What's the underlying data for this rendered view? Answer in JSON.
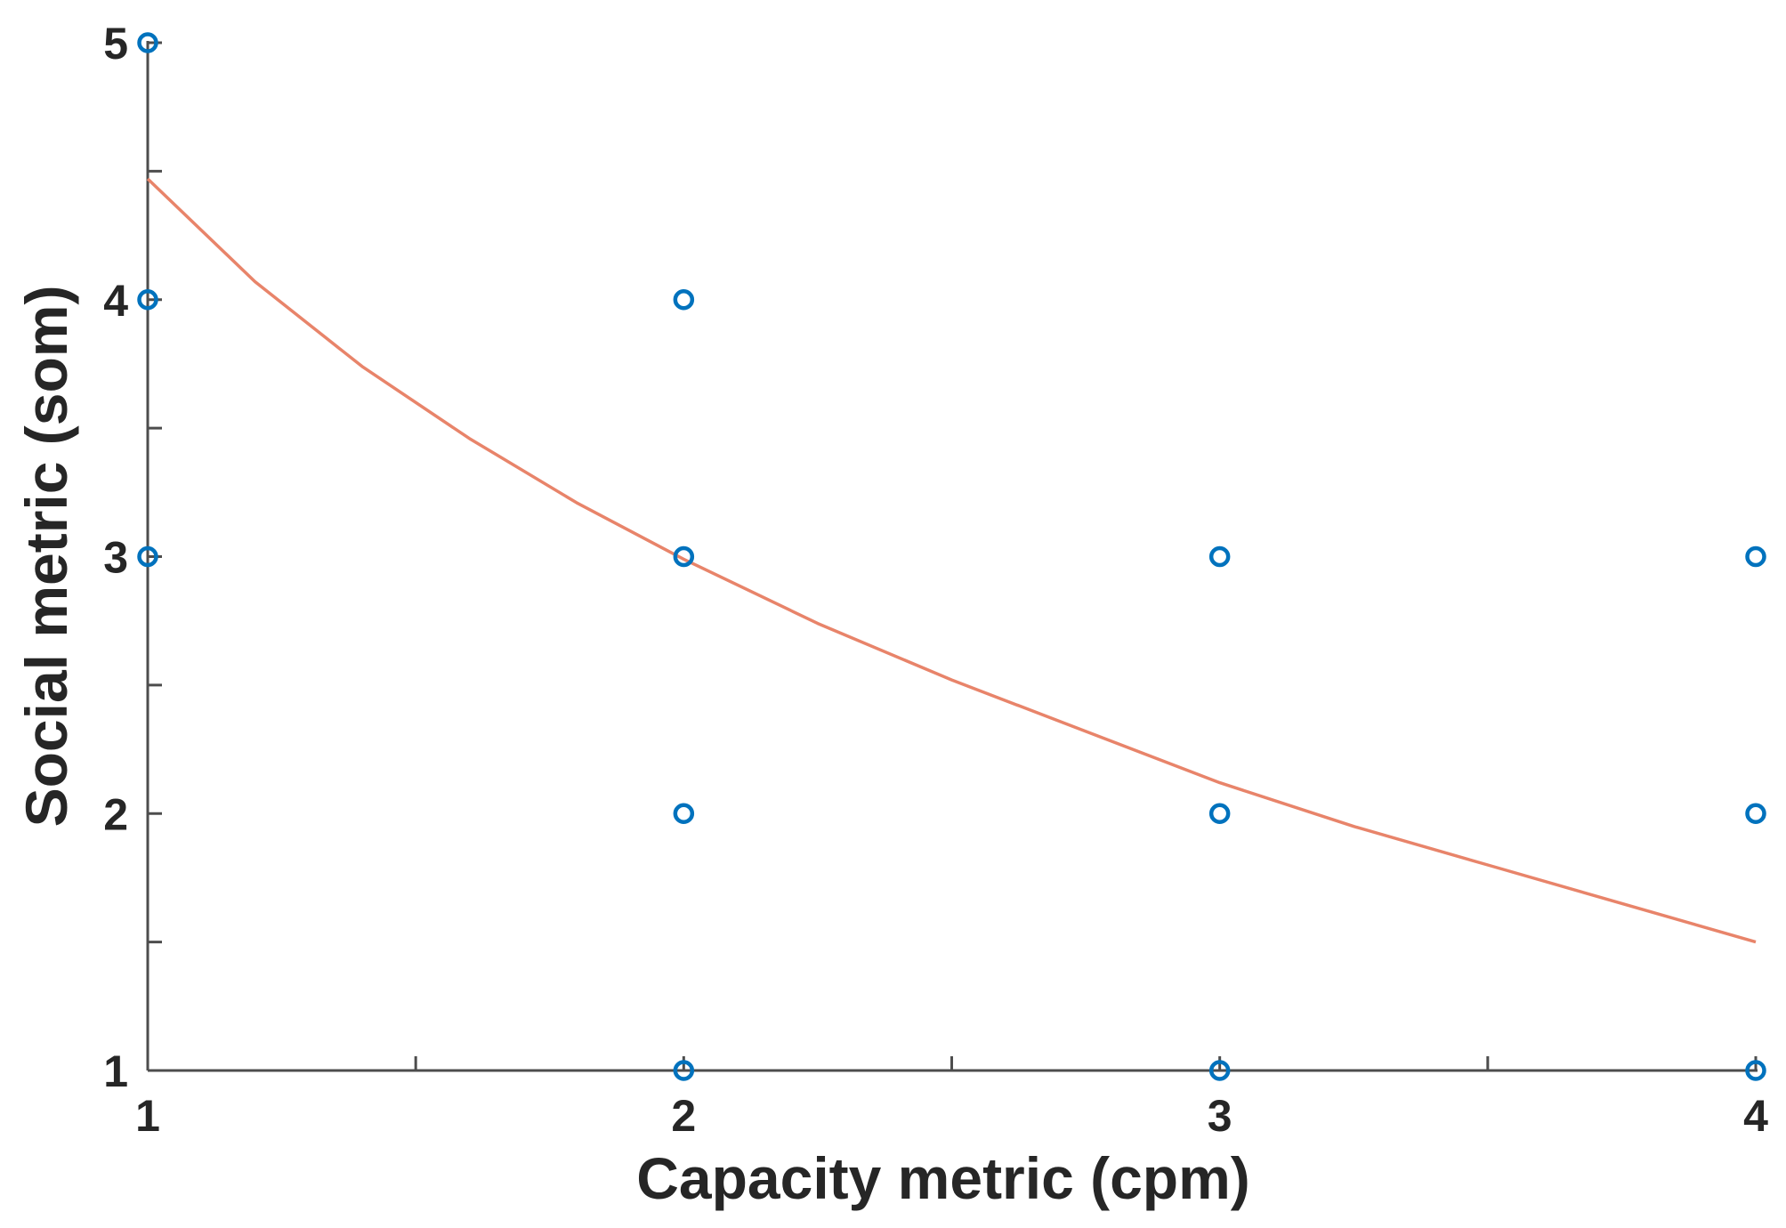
{
  "chart_data": {
    "type": "scatter",
    "title": "",
    "xlabel": "Capacity metric (cpm)",
    "ylabel": "Social metric (som)",
    "xlim": [
      1,
      4
    ],
    "ylim": [
      1,
      5
    ],
    "xticks": [
      1,
      2,
      3,
      4
    ],
    "yticks": [
      1,
      2,
      3,
      4,
      5
    ],
    "x_minor_ticks": [
      1.5,
      2.5,
      3.5
    ],
    "y_minor_ticks": [
      1.5,
      2.5,
      3.5,
      4.5
    ],
    "grid": false,
    "series": [
      {
        "name": "observations",
        "type": "scatter",
        "marker": "circle",
        "color": "#0072BD",
        "points": [
          {
            "x": 1,
            "y": 5
          },
          {
            "x": 1,
            "y": 4
          },
          {
            "x": 1,
            "y": 3
          },
          {
            "x": 2,
            "y": 4
          },
          {
            "x": 2,
            "y": 3
          },
          {
            "x": 2,
            "y": 2
          },
          {
            "x": 2,
            "y": 1
          },
          {
            "x": 3,
            "y": 3
          },
          {
            "x": 3,
            "y": 2
          },
          {
            "x": 3,
            "y": 1
          },
          {
            "x": 4,
            "y": 3
          },
          {
            "x": 4,
            "y": 2
          },
          {
            "x": 4,
            "y": 1
          }
        ]
      },
      {
        "name": "fit",
        "type": "line",
        "color": "#E8846A",
        "points": [
          {
            "x": 1.0,
            "y": 4.47
          },
          {
            "x": 1.2,
            "y": 4.07
          },
          {
            "x": 1.4,
            "y": 3.74
          },
          {
            "x": 1.6,
            "y": 3.46
          },
          {
            "x": 1.8,
            "y": 3.21
          },
          {
            "x": 2.0,
            "y": 2.99
          },
          {
            "x": 2.25,
            "y": 2.74
          },
          {
            "x": 2.5,
            "y": 2.52
          },
          {
            "x": 2.75,
            "y": 2.32
          },
          {
            "x": 3.0,
            "y": 2.12
          },
          {
            "x": 3.25,
            "y": 1.95
          },
          {
            "x": 3.5,
            "y": 1.8
          },
          {
            "x": 3.75,
            "y": 1.65
          },
          {
            "x": 4.0,
            "y": 1.5
          }
        ]
      }
    ]
  }
}
